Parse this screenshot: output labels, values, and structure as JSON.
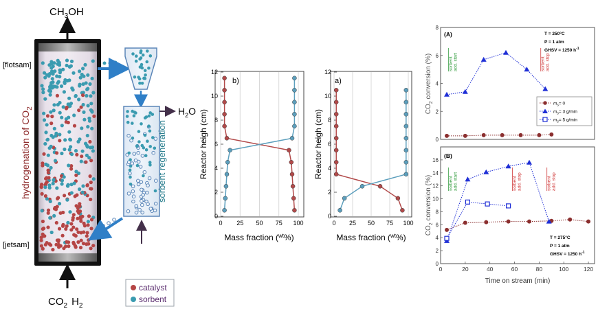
{
  "reactor": {
    "product_top": "CH",
    "product_top_sub": "3",
    "product_top_end": "OH",
    "side_label_main": "hydrogenation of CO",
    "side_label_sub": "2",
    "flotsam_label": "[flotsam]",
    "jetsam_label": "[jetsam]",
    "feed_co2": "CO",
    "feed_co2_sub": "2",
    "feed_h2": "H",
    "feed_h2_sub": "2",
    "regen_label": "sorbent regeneration",
    "water": "H",
    "water_sub": "2",
    "water_end": "O"
  },
  "legend": {
    "catalyst": "catalyst",
    "sorbent": "sorbent"
  },
  "colors": {
    "catalyst": "#b54545",
    "sorbent": "#3a9bb0",
    "arrow": "#2f7fc7",
    "profile_catalyst": "#b24a4a",
    "profile_sorbent": "#5c9fbd",
    "label_red": "#8e2b2b",
    "regen_text": "#2b7f8f"
  },
  "chart_data": [
    {
      "type": "line",
      "panel": "b)",
      "xlabel": "Mass fraction (",
      "xlabel_sup": "wt",
      "xlabel_end": "%)",
      "ylabel": "Reactor heigh (cm)",
      "xlim": [
        0,
        100
      ],
      "ylim": [
        0,
        12
      ],
      "xticks": [
        "0",
        "25",
        "50",
        "75",
        "100"
      ],
      "yticks": [
        "0",
        "2",
        "4",
        "6",
        "8",
        "10",
        "12"
      ],
      "series": [
        {
          "role": "catalyst",
          "points": [
            [
              5,
              11.5
            ],
            [
              5,
              10.5
            ],
            [
              5,
              9.5
            ],
            [
              5,
              8.5
            ],
            [
              5,
              7.5
            ],
            [
              8,
              6.5
            ],
            [
              88,
              5.5
            ],
            [
              91,
              4.5
            ],
            [
              92,
              3.5
            ],
            [
              93,
              2.5
            ],
            [
              94,
              1.5
            ],
            [
              95,
              0.5
            ]
          ]
        },
        {
          "role": "sorbent",
          "points": [
            [
              95,
              11.5
            ],
            [
              95,
              10.5
            ],
            [
              95,
              9.5
            ],
            [
              95,
              8.5
            ],
            [
              95,
              7.5
            ],
            [
              92,
              6.5
            ],
            [
              12,
              5.5
            ],
            [
              9,
              4.5
            ],
            [
              8,
              3.5
            ],
            [
              7,
              2.5
            ],
            [
              6,
              1.5
            ],
            [
              5,
              0.5
            ]
          ]
        }
      ]
    },
    {
      "type": "line",
      "panel": "a)",
      "xlabel": "Mass fraction (",
      "xlabel_sup": "wt",
      "xlabel_end": "%)",
      "ylabel": "Reactor heigh (cm)",
      "xlim": [
        0,
        100
      ],
      "ylim": [
        0,
        12
      ],
      "xticks": [
        "0",
        "25",
        "50",
        "75",
        "100"
      ],
      "yticks": [
        "0",
        "2",
        "4",
        "6",
        "8",
        "10",
        "12"
      ],
      "series": [
        {
          "role": "catalyst",
          "points": [
            [
              3,
              10.5
            ],
            [
              3,
              9.5
            ],
            [
              3,
              8.5
            ],
            [
              3,
              7.5
            ],
            [
              3,
              6.5
            ],
            [
              3,
              5.5
            ],
            [
              3,
              4.5
            ],
            [
              3,
              3.5
            ],
            [
              62,
              2.5
            ],
            [
              86,
              1.5
            ],
            [
              92,
              0.5
            ]
          ]
        },
        {
          "role": "sorbent",
          "points": [
            [
              97,
              10.5
            ],
            [
              97,
              9.5
            ],
            [
              97,
              8.5
            ],
            [
              97,
              7.5
            ],
            [
              97,
              6.5
            ],
            [
              97,
              5.5
            ],
            [
              97,
              4.5
            ],
            [
              97,
              3.5
            ],
            [
              38,
              2.5
            ],
            [
              14,
              1.5
            ],
            [
              8,
              0.5
            ]
          ]
        }
      ]
    },
    {
      "type": "scatter",
      "panel": "(A)",
      "conditions": [
        "T = 250°C",
        "P = 1 atm",
        "GHSV = 1250 h"
      ],
      "ghsv_sup": "-1",
      "ylabel_main": "CO",
      "ylabel_sub": "2",
      "ylabel_end": " conversion (%)",
      "xlim": [
        0,
        125
      ],
      "ylim": [
        0,
        8
      ],
      "yticks": [
        "0",
        "2",
        "4",
        "6",
        "8"
      ],
      "legend": [
        "m",
        "= 0",
        "= 3 g/min",
        "= 5 g/min"
      ],
      "legend_sub": "s",
      "annotations": [
        {
          "text1": "sorbent",
          "text2": "add. start",
          "x": 8,
          "color": "#2e9a3a"
        },
        {
          "text1": "sorbent",
          "text2": "add. stop",
          "x": 83,
          "color": "#d03a3a"
        }
      ],
      "series": [
        {
          "name": "ms = 0",
          "marker": "circle",
          "color": "#8b2f2f",
          "points": [
            [
              5,
              0.25
            ],
            [
              20,
              0.25
            ],
            [
              35,
              0.3
            ],
            [
              50,
              0.3
            ],
            [
              65,
              0.3
            ],
            [
              80,
              0.3
            ],
            [
              90,
              0.35
            ]
          ]
        },
        {
          "name": "ms = 3 g/min",
          "marker": "triangle",
          "color": "#1f2fd6",
          "points": [
            [
              5,
              3.2
            ],
            [
              20,
              3.4
            ],
            [
              35,
              5.7
            ],
            [
              53,
              6.2
            ],
            [
              70,
              5.0
            ],
            [
              85,
              3.6
            ]
          ]
        }
      ]
    },
    {
      "type": "scatter",
      "panel": "(B)",
      "conditions": [
        "T = 275°C",
        "P = 1 atm",
        "GHSV = 1250 h"
      ],
      "ghsv_sup": "-1",
      "ylabel_main": "CO",
      "ylabel_sub": "2",
      "ylabel_end": " conversion (%)",
      "xlabel": "Time on stream (min)",
      "xlim": [
        0,
        125
      ],
      "ylim": [
        0,
        18
      ],
      "xticks": [
        "0",
        "20",
        "40",
        "60",
        "80",
        "100",
        "120"
      ],
      "yticks": [
        "0",
        "2",
        "4",
        "6",
        "8",
        "10",
        "12",
        "14",
        "16"
      ],
      "annotations": [
        {
          "text1": "sorbent",
          "text2": "add. start",
          "x": 8,
          "color": "#2e9a3a"
        },
        {
          "text1": "sorbent",
          "text2": "add. stop",
          "x": 60,
          "color": "#d03a3a"
        },
        {
          "text1": "sorbent",
          "text2": "add. stop",
          "x": 88,
          "color": "#d03a3a"
        }
      ],
      "series": [
        {
          "name": "ms = 0",
          "marker": "circle",
          "color": "#8b2f2f",
          "points": [
            [
              5,
              5.2
            ],
            [
              20,
              6.3
            ],
            [
              37,
              6.4
            ],
            [
              55,
              6.5
            ],
            [
              72,
              6.5
            ],
            [
              90,
              6.6
            ],
            [
              105,
              6.8
            ],
            [
              120,
              6.5
            ]
          ]
        },
        {
          "name": "ms = 3 g/min",
          "marker": "triangle",
          "color": "#1f2fd6",
          "points": [
            [
              5,
              3.5
            ],
            [
              22,
              13.0
            ],
            [
              37,
              14.1
            ],
            [
              55,
              15.0
            ],
            [
              72,
              15.6
            ],
            [
              88,
              6.5
            ]
          ]
        },
        {
          "name": "ms = 5 g/min",
          "marker": "square",
          "color": "#1f2fd6",
          "points": [
            [
              5,
              3.9
            ],
            [
              22,
              9.5
            ],
            [
              38,
              9.2
            ],
            [
              55,
              8.9
            ]
          ]
        }
      ]
    }
  ]
}
